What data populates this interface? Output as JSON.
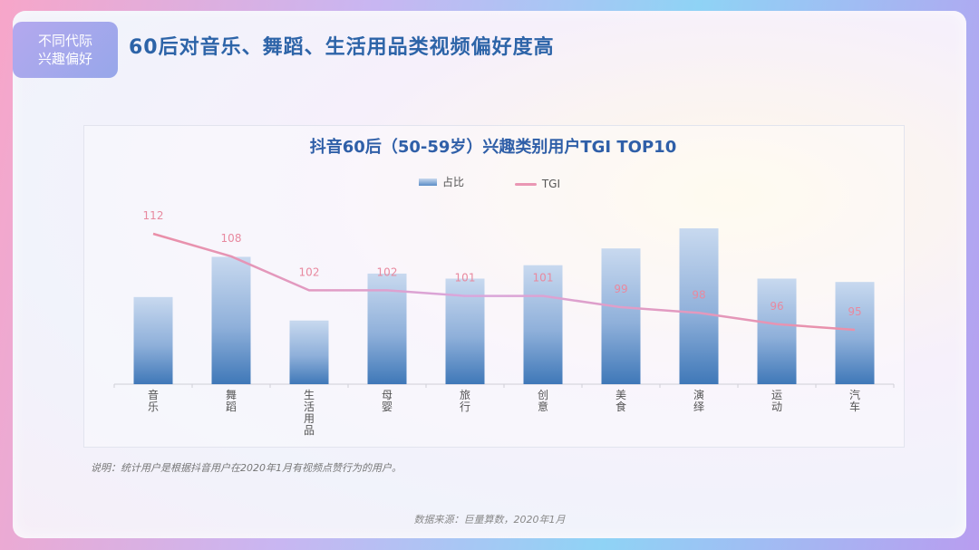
{
  "tag": {
    "line1": "不同代际",
    "line2": "兴趣偏好"
  },
  "headline": "60后对音乐、舞蹈、生活用品类视频偏好度高",
  "note": "说明：统计用户是根据抖音用户在2020年1月有视频点赞行为的用户。",
  "source": "数据来源：巨量算数，2020年1月",
  "chart_data": {
    "type": "bar",
    "title": "抖音60后（50-59岁）兴趣类别用户TGI TOP10",
    "legend_position": "top-center",
    "categories": [
      "音乐",
      "舞蹈",
      "生活用品",
      "母婴",
      "旅行",
      "创意",
      "美食",
      "演绎",
      "运动",
      "汽车"
    ],
    "series": [
      {
        "name": "占比",
        "type": "bar",
        "values": [
          0.52,
          0.76,
          0.38,
          0.66,
          0.63,
          0.71,
          0.81,
          0.93,
          0.63,
          0.61
        ]
      },
      {
        "name": "TGI",
        "type": "line",
        "values": [
          112,
          108,
          102,
          102,
          101,
          101,
          99,
          98,
          96,
          95
        ]
      }
    ],
    "colors": {
      "bar_top": "#c8d9ef",
      "bar_bottom": "#3f78b8",
      "line": "#ea97b4",
      "line_label": "#e8899f"
    }
  }
}
